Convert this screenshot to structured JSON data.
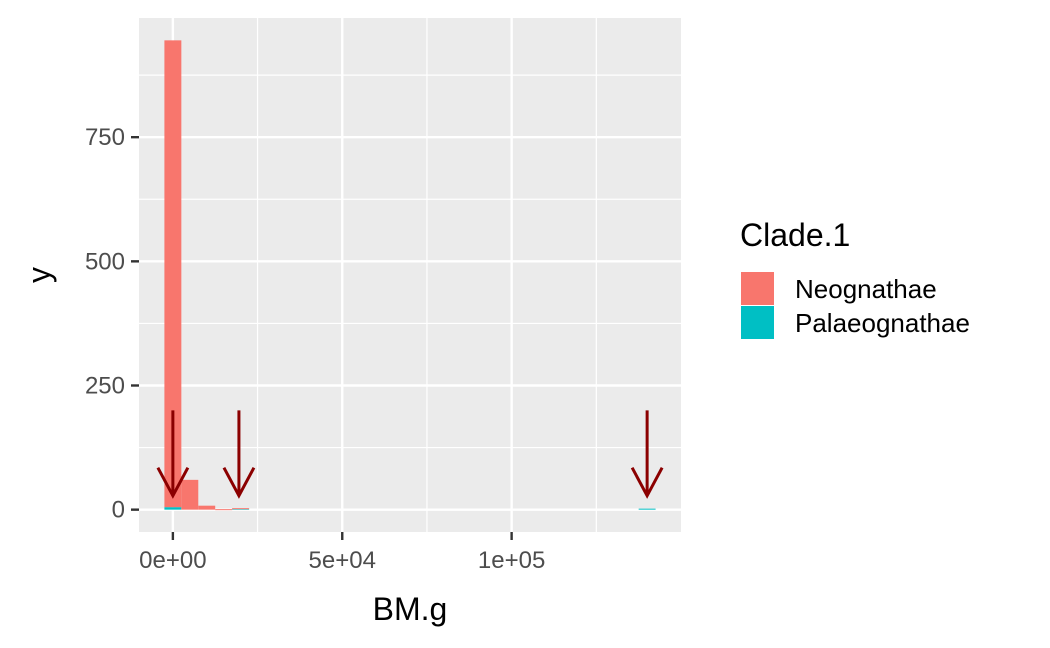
{
  "chart_data": {
    "type": "bar",
    "subtype": "stacked-histogram",
    "xlabel": "BM.g",
    "ylabel": "y",
    "xlim": [
      -10000,
      150000
    ],
    "ylim": [
      -45,
      990
    ],
    "x_ticks": [
      {
        "value": 0,
        "label": "0e+00"
      },
      {
        "value": 50000,
        "label": "5e+04"
      },
      {
        "value": 100000,
        "label": "1e+05"
      }
    ],
    "y_ticks": [
      {
        "value": 0,
        "label": "0"
      },
      {
        "value": 250,
        "label": "250"
      },
      {
        "value": 500,
        "label": "500"
      },
      {
        "value": 750,
        "label": "750"
      }
    ],
    "bin_width": 5000,
    "bin_starts": [
      -2500,
      2500,
      7500,
      12500,
      17500,
      22500
    ],
    "series": [
      {
        "name": "Neognathae",
        "color": "#F8766D",
        "values": [
          940,
          60,
          8,
          1,
          1,
          0
        ]
      },
      {
        "name": "Palaeognathae",
        "color": "#00BFC4",
        "values": [
          5,
          0,
          0,
          0,
          2,
          0
        ]
      }
    ],
    "extra_bins": [
      {
        "x_start": 137500,
        "series": "Palaeognathae",
        "value": 2
      }
    ],
    "annotations": [
      {
        "type": "arrow",
        "x": 0,
        "y_from": 200,
        "y_to": 0,
        "color": "#8B0000"
      },
      {
        "type": "arrow",
        "x": 19500,
        "y_from": 200,
        "y_to": 0,
        "color": "#8B0000"
      },
      {
        "type": "arrow",
        "x": 140000,
        "y_from": 200,
        "y_to": 0,
        "color": "#8B0000"
      }
    ],
    "grid": true,
    "panel_background": "#EBEBEB",
    "grid_color": "#FFFFFF",
    "legend": {
      "title": "Clade.1",
      "position": "right",
      "entries": [
        "Neognathae",
        "Palaeognathae"
      ]
    }
  }
}
